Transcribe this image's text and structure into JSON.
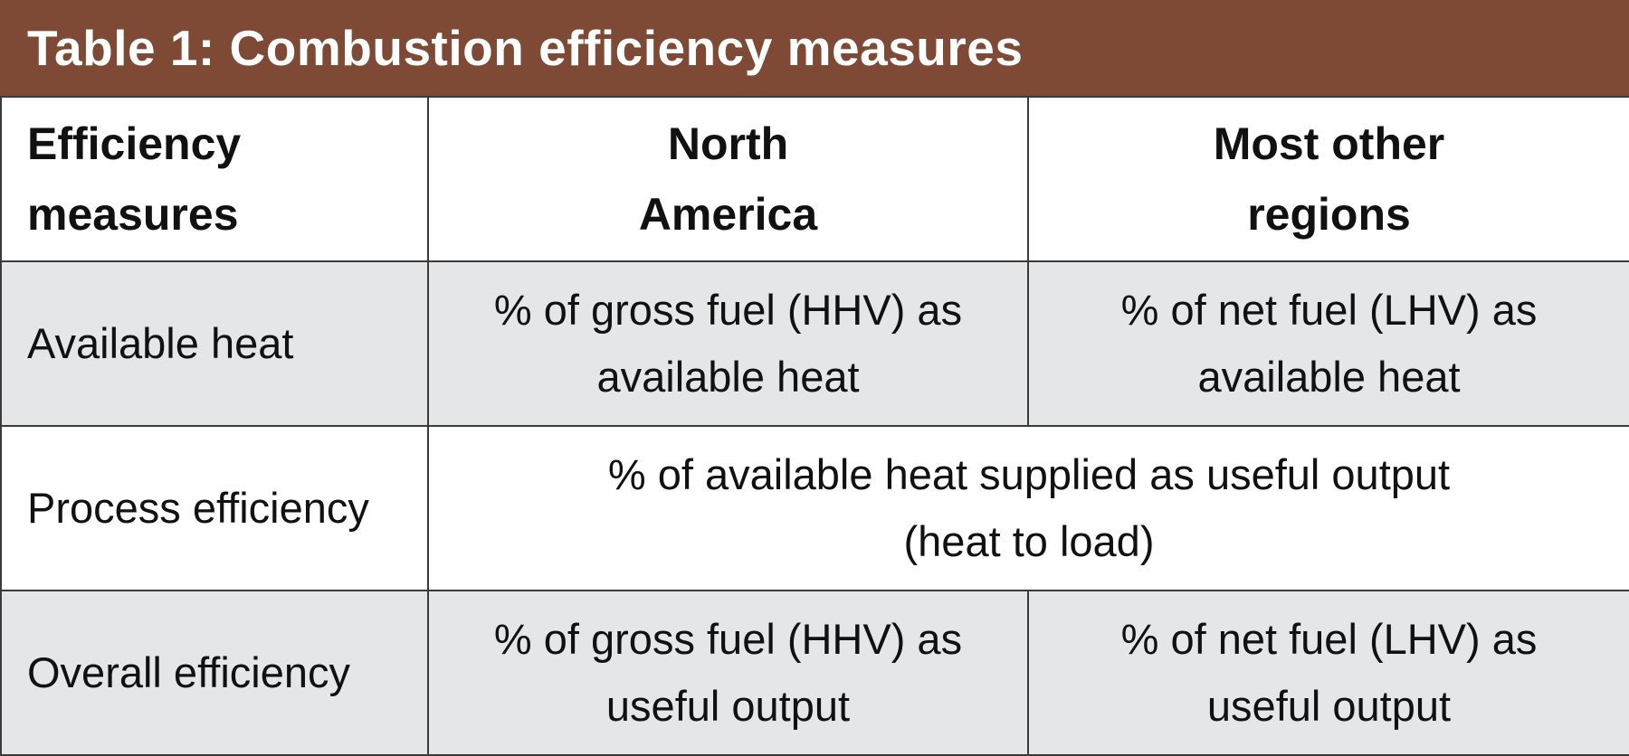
{
  "title": "Table 1: Combustion efficiency measures",
  "colors": {
    "title_bar": "#7e4a35",
    "title_text": "#ffffff",
    "shaded_row": "#e5e6e8",
    "border": "#3a3a3a"
  },
  "headers": {
    "col1": [
      "Efficiency",
      "measures"
    ],
    "col2": [
      "North",
      "America"
    ],
    "col3": [
      "Most other",
      "regions"
    ]
  },
  "rows": [
    {
      "label": "Available heat",
      "north_america": [
        "% of gross fuel (HHV) as",
        "available heat"
      ],
      "other_regions": [
        "% of net fuel (LHV) as",
        "available heat"
      ]
    },
    {
      "label": "Process efficiency",
      "merged": [
        "% of available heat supplied as useful output",
        "(heat to load)"
      ]
    },
    {
      "label": "Overall efficiency",
      "north_america": [
        "% of gross fuel (HHV) as",
        "useful output"
      ],
      "other_regions": [
        "% of net fuel (LHV) as",
        "useful output"
      ]
    }
  ]
}
